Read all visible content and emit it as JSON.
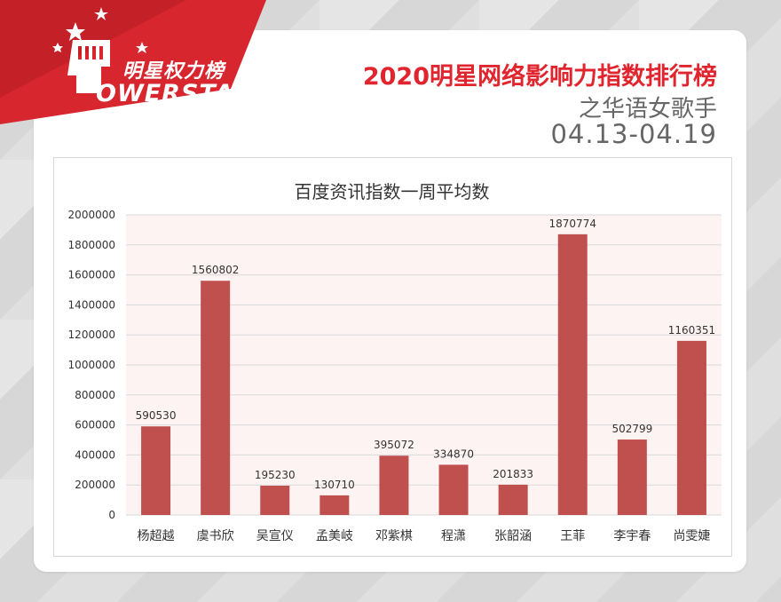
{
  "brand": {
    "name_cn": "明星权力榜",
    "name_en": "OWERSTAR"
  },
  "header": {
    "title": "2020明星网络影响力指数排行榜",
    "subtitle": "之华语女歌手",
    "date_range": "04.13-04.19"
  },
  "colors": {
    "brand_red": "#e0252f",
    "bar": "#c0504d"
  },
  "chart_data": {
    "type": "bar",
    "title": "百度资讯指数一周平均数",
    "categories": [
      "杨超越",
      "虞书欣",
      "吴宣仪",
      "孟美岐",
      "邓紫棋",
      "程潇",
      "张韶涵",
      "王菲",
      "李宇春",
      "尚雯婕"
    ],
    "values": [
      590530,
      1560802,
      195230,
      130710,
      395072,
      334870,
      201833,
      1870774,
      502799,
      1160351
    ],
    "data_labels": [
      "590530",
      "1560802",
      "195230",
      "130710",
      "395072",
      "334870",
      "201833",
      "1870774",
      "502799",
      "1160351"
    ],
    "y_ticks": [
      0,
      200000,
      400000,
      600000,
      800000,
      1000000,
      1200000,
      1400000,
      1600000,
      1800000,
      2000000
    ],
    "y_tick_labels": [
      "0",
      "200000",
      "400000",
      "600000",
      "800000",
      "1000000",
      "1200000",
      "1400000",
      "1600000",
      "1800000",
      "2000000"
    ],
    "ylim": [
      0,
      2000000
    ],
    "grid": true,
    "legend": "none"
  }
}
